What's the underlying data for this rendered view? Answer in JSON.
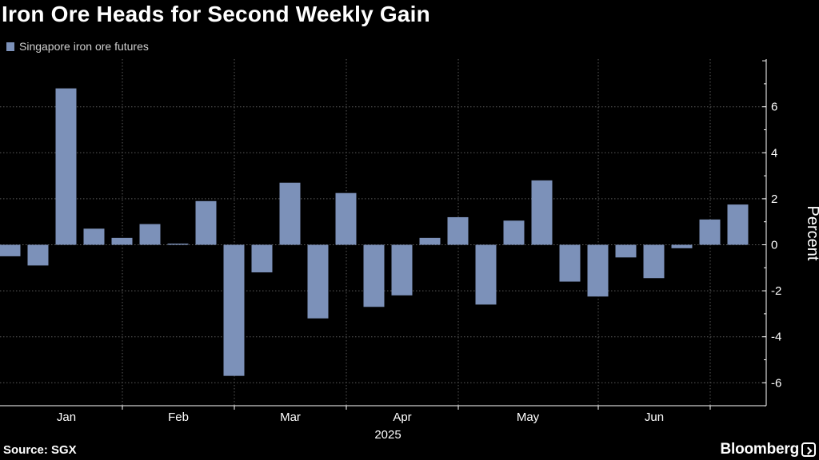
{
  "header": {
    "title": "Iron Ore Heads for Second Weekly Gain"
  },
  "legend": {
    "label": "Singapore iron ore futures",
    "color": "#7c91b9"
  },
  "footer": {
    "source": "Source: SGX",
    "brand": "Bloomberg"
  },
  "colors": {
    "background": "#000000",
    "bar": "#7c91b9",
    "grid": "#5a5a5a",
    "text": "#ffffff"
  },
  "chart_data": {
    "type": "bar",
    "title": "Iron Ore Heads for Second Weekly Gain",
    "ylabel": "Percent",
    "xlabel": "2025",
    "ylim": [
      -7,
      8
    ],
    "y_ticks": [
      6,
      4,
      2,
      0,
      -2,
      -4,
      -6
    ],
    "y_tick_labels": [
      "6",
      "4",
      "2",
      "0",
      "-2",
      "-4",
      "-6"
    ],
    "x_tick_labels": [
      "Jan",
      "Feb",
      "Mar",
      "Apr",
      "May",
      "Jun"
    ],
    "grid": true,
    "legend_position": "top-left",
    "y_axis_position": "right",
    "series": [
      {
        "name": "Singapore iron ore futures",
        "color": "#7c91b9",
        "values": [
          -0.5,
          -0.9,
          6.8,
          0.7,
          0.3,
          0.9,
          0.05,
          1.9,
          -5.7,
          -1.2,
          2.7,
          -3.2,
          2.25,
          -2.7,
          -2.2,
          0.3,
          1.2,
          -2.6,
          1.05,
          2.8,
          -1.6,
          -2.25,
          -0.55,
          -1.45,
          -0.15,
          1.1,
          1.75
        ]
      }
    ]
  }
}
